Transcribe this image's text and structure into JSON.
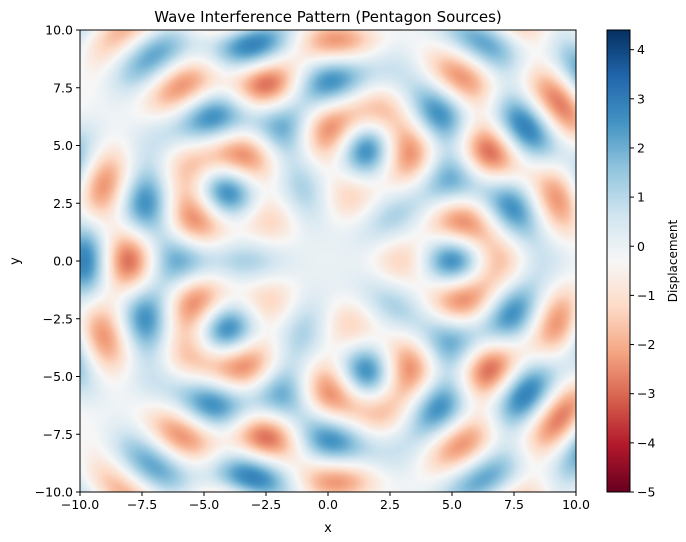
{
  "chart_data": {
    "type": "heatmap",
    "title": "Wave Interference Pattern (Pentagon Sources)",
    "xlabel": "x",
    "ylabel": "y",
    "xlim": [
      -10,
      10
    ],
    "ylim": [
      -10,
      10
    ],
    "x_ticks": [
      -10,
      -7.5,
      -5,
      -2.5,
      0,
      2.5,
      5,
      7.5,
      10
    ],
    "y_ticks": [
      -10,
      -7.5,
      -5,
      -2.5,
      0,
      2.5,
      5,
      7.5,
      10
    ],
    "x_tick_labels": [
      "−10.0",
      "−7.5",
      "−5.0",
      "−2.5",
      "0.0",
      "2.5",
      "5.0",
      "7.5",
      "10.0"
    ],
    "y_tick_labels": [
      "−10.0",
      "−7.5",
      "−5.0",
      "−2.5",
      "0.0",
      "2.5",
      "5.0",
      "7.5",
      "10.0"
    ],
    "colormap": "RdBu",
    "colorbar": {
      "label": "Displacement",
      "range": [
        -5,
        4.4
      ],
      "ticks": [
        4,
        3,
        2,
        1,
        0,
        -1,
        -2,
        -3,
        -4,
        -5
      ],
      "tick_labels": [
        "4",
        "3",
        "2",
        "1",
        "0",
        "−1",
        "−2",
        "−3",
        "−4",
        "−5"
      ]
    },
    "sources": [
      {
        "x": 5.5,
        "y": 0.0
      },
      {
        "x": 1.7,
        "y": 5.23
      },
      {
        "x": -4.45,
        "y": 3.23
      },
      {
        "x": -4.45,
        "y": -3.23
      },
      {
        "x": 1.7,
        "y": -5.23
      }
    ],
    "wave": {
      "wavenumber": 2.0,
      "decay": 0.05
    },
    "value_range": [
      -5,
      4.4
    ],
    "grid": false
  }
}
